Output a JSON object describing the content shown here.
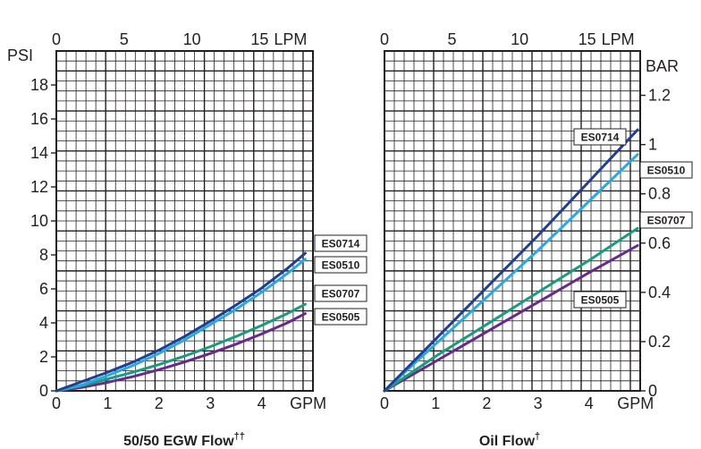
{
  "chart_data": [
    {
      "type": "line",
      "title": "50/50 EGW Flow",
      "title_mark": "††",
      "x": {
        "unit": "GPM",
        "range": [
          0,
          5
        ],
        "ticks": [
          0,
          1,
          2,
          3,
          4
        ]
      },
      "x_top": {
        "unit": "LPM",
        "range": [
          0,
          18.93
        ],
        "ticks": [
          0,
          5,
          10,
          15
        ]
      },
      "y": {
        "unit": "PSI",
        "range": [
          0,
          20
        ],
        "ticks": [
          0,
          2,
          4,
          6,
          8,
          10,
          12,
          14,
          16,
          18
        ]
      },
      "grid": true,
      "series": [
        {
          "name": "ES0714",
          "color": "#1f3f8f",
          "points": [
            [
              0,
              0
            ],
            [
              0.5,
              0.55
            ],
            [
              1,
              1.1
            ],
            [
              1.5,
              1.7
            ],
            [
              2,
              2.4
            ],
            [
              2.5,
              3.2
            ],
            [
              3,
              4.1
            ],
            [
              3.5,
              5.05
            ],
            [
              4,
              6.05
            ],
            [
              4.5,
              7.2
            ],
            [
              4.85,
              8.1
            ]
          ]
        },
        {
          "name": "ES0510",
          "color": "#29a9e0",
          "points": [
            [
              0,
              0
            ],
            [
              0.5,
              0.35
            ],
            [
              1,
              0.9
            ],
            [
              1.5,
              1.5
            ],
            [
              2,
              2.2
            ],
            [
              2.5,
              3.0
            ],
            [
              3,
              3.9
            ],
            [
              3.5,
              4.8
            ],
            [
              4,
              5.8
            ],
            [
              4.5,
              6.9
            ],
            [
              4.85,
              7.75
            ]
          ]
        },
        {
          "name": "ES0707",
          "color": "#1a9b7e",
          "points": [
            [
              0,
              0
            ],
            [
              0.5,
              0.3
            ],
            [
              1,
              0.7
            ],
            [
              1.5,
              1.1
            ],
            [
              2,
              1.55
            ],
            [
              2.5,
              2.05
            ],
            [
              3,
              2.6
            ],
            [
              3.5,
              3.2
            ],
            [
              4,
              3.85
            ],
            [
              4.5,
              4.55
            ],
            [
              4.85,
              5.1
            ]
          ]
        },
        {
          "name": "ES0505",
          "color": "#6a2a8a",
          "points": [
            [
              0,
              0
            ],
            [
              0.5,
              0.2
            ],
            [
              1,
              0.5
            ],
            [
              1.5,
              0.85
            ],
            [
              2,
              1.25
            ],
            [
              2.5,
              1.7
            ],
            [
              3,
              2.2
            ],
            [
              3.5,
              2.75
            ],
            [
              4,
              3.35
            ],
            [
              4.5,
              4.0
            ],
            [
              4.85,
              4.55
            ]
          ]
        }
      ]
    },
    {
      "type": "line",
      "title": "Oil Flow",
      "title_mark": "†",
      "x": {
        "unit": "GPM",
        "range": [
          0,
          5
        ],
        "ticks": [
          0,
          1,
          2,
          3,
          4
        ]
      },
      "x_top": {
        "unit": "LPM",
        "range": [
          0,
          18.93
        ],
        "ticks": [
          0,
          5,
          10,
          15
        ]
      },
      "y": {
        "unit": "BAR",
        "range": [
          0,
          1.38
        ],
        "ticks": [
          0,
          0.2,
          0.4,
          0.6,
          0.8,
          1,
          1.2
        ]
      },
      "grid": true,
      "series": [
        {
          "name": "ES0714",
          "color": "#1f3f8f",
          "points": [
            [
              0,
              0
            ],
            [
              1,
              0.21
            ],
            [
              2,
              0.42
            ],
            [
              3,
              0.63
            ],
            [
              4,
              0.85
            ],
            [
              4.95,
              1.06
            ]
          ]
        },
        {
          "name": "ES0510",
          "color": "#29a9e0",
          "points": [
            [
              0,
              0
            ],
            [
              1,
              0.19
            ],
            [
              2,
              0.38
            ],
            [
              3,
              0.57
            ],
            [
              4,
              0.77
            ],
            [
              4.95,
              0.96
            ]
          ]
        },
        {
          "name": "ES0707",
          "color": "#1a9b7e",
          "points": [
            [
              0,
              0
            ],
            [
              1,
              0.14
            ],
            [
              2,
              0.27
            ],
            [
              3,
              0.4
            ],
            [
              4,
              0.53
            ],
            [
              4.95,
              0.66
            ]
          ]
        },
        {
          "name": "ES0505",
          "color": "#6a2a8a",
          "points": [
            [
              0,
              0
            ],
            [
              1,
              0.12
            ],
            [
              2,
              0.24
            ],
            [
              3,
              0.36
            ],
            [
              4,
              0.48
            ],
            [
              4.95,
              0.59
            ]
          ]
        }
      ]
    }
  ]
}
